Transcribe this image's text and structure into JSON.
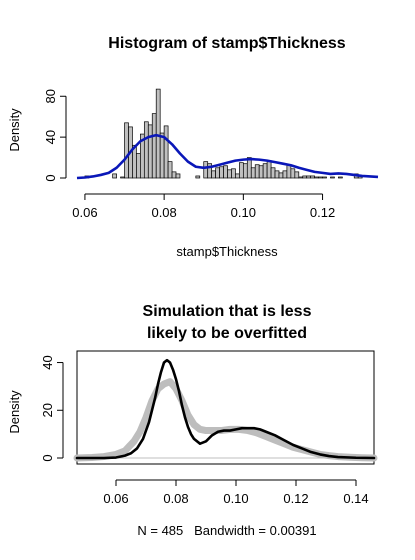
{
  "chart_data": [
    {
      "type": "bar",
      "title": "Histogram of stamp$Thickness",
      "xlabel": "stamp$Thickness",
      "ylabel": "Density",
      "xlim": [
        0.058,
        0.134
      ],
      "ylim": [
        0,
        92
      ],
      "xticks": [
        0.06,
        0.08,
        0.1,
        0.12
      ],
      "xtick_labels": [
        "0.06",
        "0.08",
        "0.10",
        "0.12"
      ],
      "yticks": [
        0,
        40,
        80
      ],
      "ytick_labels": [
        "0",
        "40",
        "80"
      ],
      "bins": {
        "start": 0.06,
        "width": 0.001,
        "densities": [
          2,
          0,
          0,
          0,
          0,
          0,
          0,
          4,
          0,
          1,
          54,
          50,
          32,
          24,
          43,
          55,
          52,
          63,
          87,
          44,
          51,
          16,
          6,
          4,
          0,
          0,
          0,
          0,
          2,
          0,
          16,
          14,
          7,
          10,
          11,
          12,
          8,
          9,
          4,
          15,
          14,
          20,
          10,
          13,
          12,
          14,
          17,
          10,
          7,
          5,
          7,
          13,
          9,
          6,
          1,
          2,
          2,
          2,
          1,
          1,
          1,
          0,
          1,
          0,
          1,
          0,
          0,
          0,
          4,
          2,
          0,
          0,
          0,
          0,
          0
        ]
      },
      "density_curve": {
        "name": "density",
        "color": "#0a17b8",
        "x": [
          0.058,
          0.06,
          0.062,
          0.064,
          0.066,
          0.068,
          0.07,
          0.072,
          0.074,
          0.076,
          0.078,
          0.08,
          0.082,
          0.084,
          0.086,
          0.088,
          0.09,
          0.092,
          0.094,
          0.096,
          0.098,
          0.1,
          0.102,
          0.104,
          0.106,
          0.108,
          0.11,
          0.112,
          0.114,
          0.116,
          0.118,
          0.12,
          0.122,
          0.124,
          0.126,
          0.128,
          0.13,
          0.132,
          0.134
        ],
        "y": [
          0,
          0.5,
          1.5,
          3,
          5,
          10,
          18,
          28,
          36,
          40,
          42,
          40,
          33,
          24,
          16,
          11,
          10,
          11,
          13,
          15,
          17,
          18,
          18.5,
          18,
          17,
          15.5,
          14,
          12.5,
          10,
          8,
          6,
          5,
          4,
          4.5,
          4,
          3,
          2,
          1.5,
          1
        ]
      }
    },
    {
      "type": "line",
      "title": "Simulation that is less likely to be overfitted",
      "title_lines": [
        "Simulation that is less",
        "likely to be overfitted"
      ],
      "xlabel": "N = 485   Bandwidth = 0.00391",
      "ylabel": "Density",
      "xlim": [
        0.047,
        0.146
      ],
      "ylim": [
        0,
        44
      ],
      "xticks": [
        0.06,
        0.08,
        0.1,
        0.12,
        0.14
      ],
      "xtick_labels": [
        "0.06",
        "0.08",
        "0.10",
        "0.12",
        "0.14"
      ],
      "yticks": [
        0,
        20,
        40
      ],
      "ytick_labels": [
        "0",
        "20",
        "40"
      ],
      "series": [
        {
          "color": "#bdbdbd",
          "width": "thick",
          "x": [
            0.047,
            0.052,
            0.056,
            0.06,
            0.063,
            0.066,
            0.068,
            0.07,
            0.072,
            0.074,
            0.076,
            0.078,
            0.08,
            0.082,
            0.084,
            0.086,
            0.088,
            0.09,
            0.092,
            0.095,
            0.098,
            0.101,
            0.104,
            0.107,
            0.11,
            0.113,
            0.116,
            0.119,
            0.122,
            0.125,
            0.128,
            0.131,
            0.134,
            0.138,
            0.142,
            0.146
          ],
          "y": [
            0,
            0.2,
            0.6,
            1.5,
            3,
            7,
            11,
            17,
            24,
            29,
            31,
            32,
            29,
            24,
            18,
            14,
            12,
            11.5,
            11.5,
            11.5,
            12,
            12,
            11.5,
            10.5,
            9,
            7.5,
            6,
            4.5,
            3.5,
            2.5,
            1.5,
            1,
            0.6,
            0.3,
            0.1,
            0
          ]
        },
        {
          "color": "#000000",
          "width": "medium",
          "x": [
            0.047,
            0.056,
            0.06,
            0.063,
            0.065,
            0.067,
            0.069,
            0.071,
            0.073,
            0.074,
            0.075,
            0.076,
            0.077,
            0.078,
            0.079,
            0.08,
            0.081,
            0.082,
            0.083,
            0.084,
            0.085,
            0.086,
            0.088,
            0.09,
            0.092,
            0.094,
            0.096,
            0.098,
            0.1,
            0.102,
            0.104,
            0.106,
            0.108,
            0.11,
            0.113,
            0.116,
            0.119,
            0.122,
            0.125,
            0.128,
            0.131,
            0.134,
            0.14,
            0.146
          ],
          "y": [
            0,
            0,
            0.2,
            1,
            2,
            4,
            8,
            15,
            25,
            31,
            36,
            40,
            41,
            40,
            37,
            33,
            28,
            22,
            17,
            13,
            10,
            8,
            6,
            7,
            9.5,
            11,
            11.5,
            11.5,
            12,
            12.5,
            12.5,
            12.5,
            12,
            11,
            9.5,
            7.5,
            5.5,
            4,
            2.5,
            1.5,
            0.8,
            0.4,
            0.1,
            0
          ]
        }
      ]
    }
  ]
}
